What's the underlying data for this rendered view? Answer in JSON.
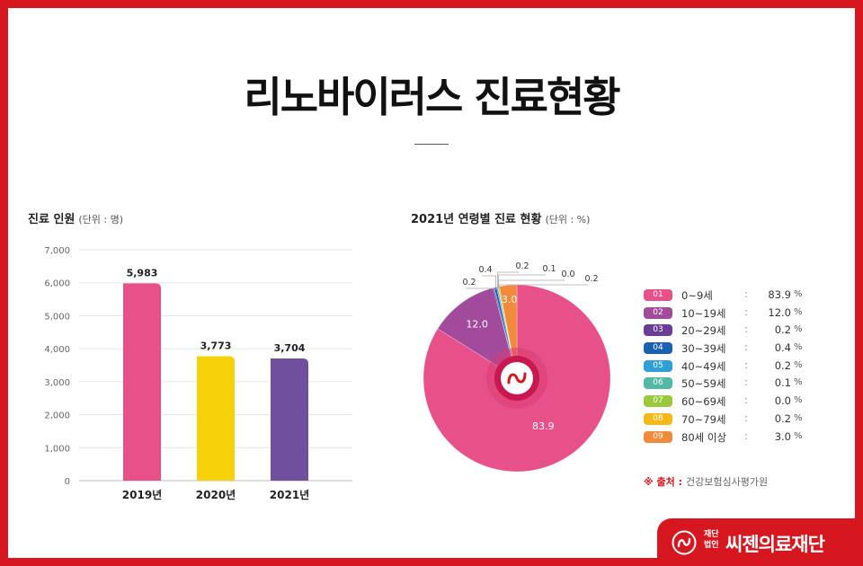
{
  "page": {
    "title": "리노바이러스 진료현황"
  },
  "bar_panel": {
    "title": "진료 인원",
    "unit": "(단위 : 명)"
  },
  "pie_panel": {
    "title": "2021년  연령별 진료 현황",
    "unit": "(단위 : %)"
  },
  "chart_data": [
    {
      "type": "bar",
      "title": "진료 인원",
      "unit": "(단위 : 명)",
      "categories": [
        "2019년",
        "2020년",
        "2021년"
      ],
      "values": [
        5983,
        3773,
        3704
      ],
      "value_labels": [
        "5,983",
        "3,773",
        "3,704"
      ],
      "colors": [
        "#e8508a",
        "#f7d20a",
        "#6f4f9e"
      ],
      "ylim": [
        0,
        7000
      ],
      "yticks": [
        0,
        1000,
        2000,
        3000,
        4000,
        5000,
        6000,
        7000
      ],
      "ytick_labels": [
        "0",
        "1,000",
        "2,000",
        "3,000",
        "4,000",
        "5,000",
        "6,000",
        "7,000"
      ],
      "grid": true
    },
    {
      "type": "pie",
      "title": "2021년  연령별 진료 현황",
      "unit": "(단위 : %)",
      "labels": [
        "0~9세",
        "10~19세",
        "20~29세",
        "30~39세",
        "40~49세",
        "50~59세",
        "60~69세",
        "70~79세",
        "80세 이상"
      ],
      "badges": [
        "01",
        "02",
        "03",
        "04",
        "05",
        "06",
        "07",
        "08",
        "09"
      ],
      "values": [
        83.9,
        12.0,
        0.2,
        0.4,
        0.2,
        0.1,
        0.0,
        0.2,
        3.0
      ],
      "value_labels": [
        "83.9",
        "12.0",
        "0.2",
        "0.4",
        "0.2",
        "0.1",
        "0.0",
        "0.2",
        "3.0"
      ],
      "colors": [
        "#e8508a",
        "#a24a9c",
        "#6c3d97",
        "#1a62b0",
        "#2f9fd8",
        "#52b9a6",
        "#9ac93c",
        "#f6b818",
        "#f18a3a"
      ],
      "percent_unit": "%",
      "legend": "right"
    }
  ],
  "source": {
    "label": "※ 출처 :",
    "text": "건강보험심사평가원"
  },
  "brand": {
    "small": "재단\n법인",
    "name": "씨젠의료재단"
  }
}
